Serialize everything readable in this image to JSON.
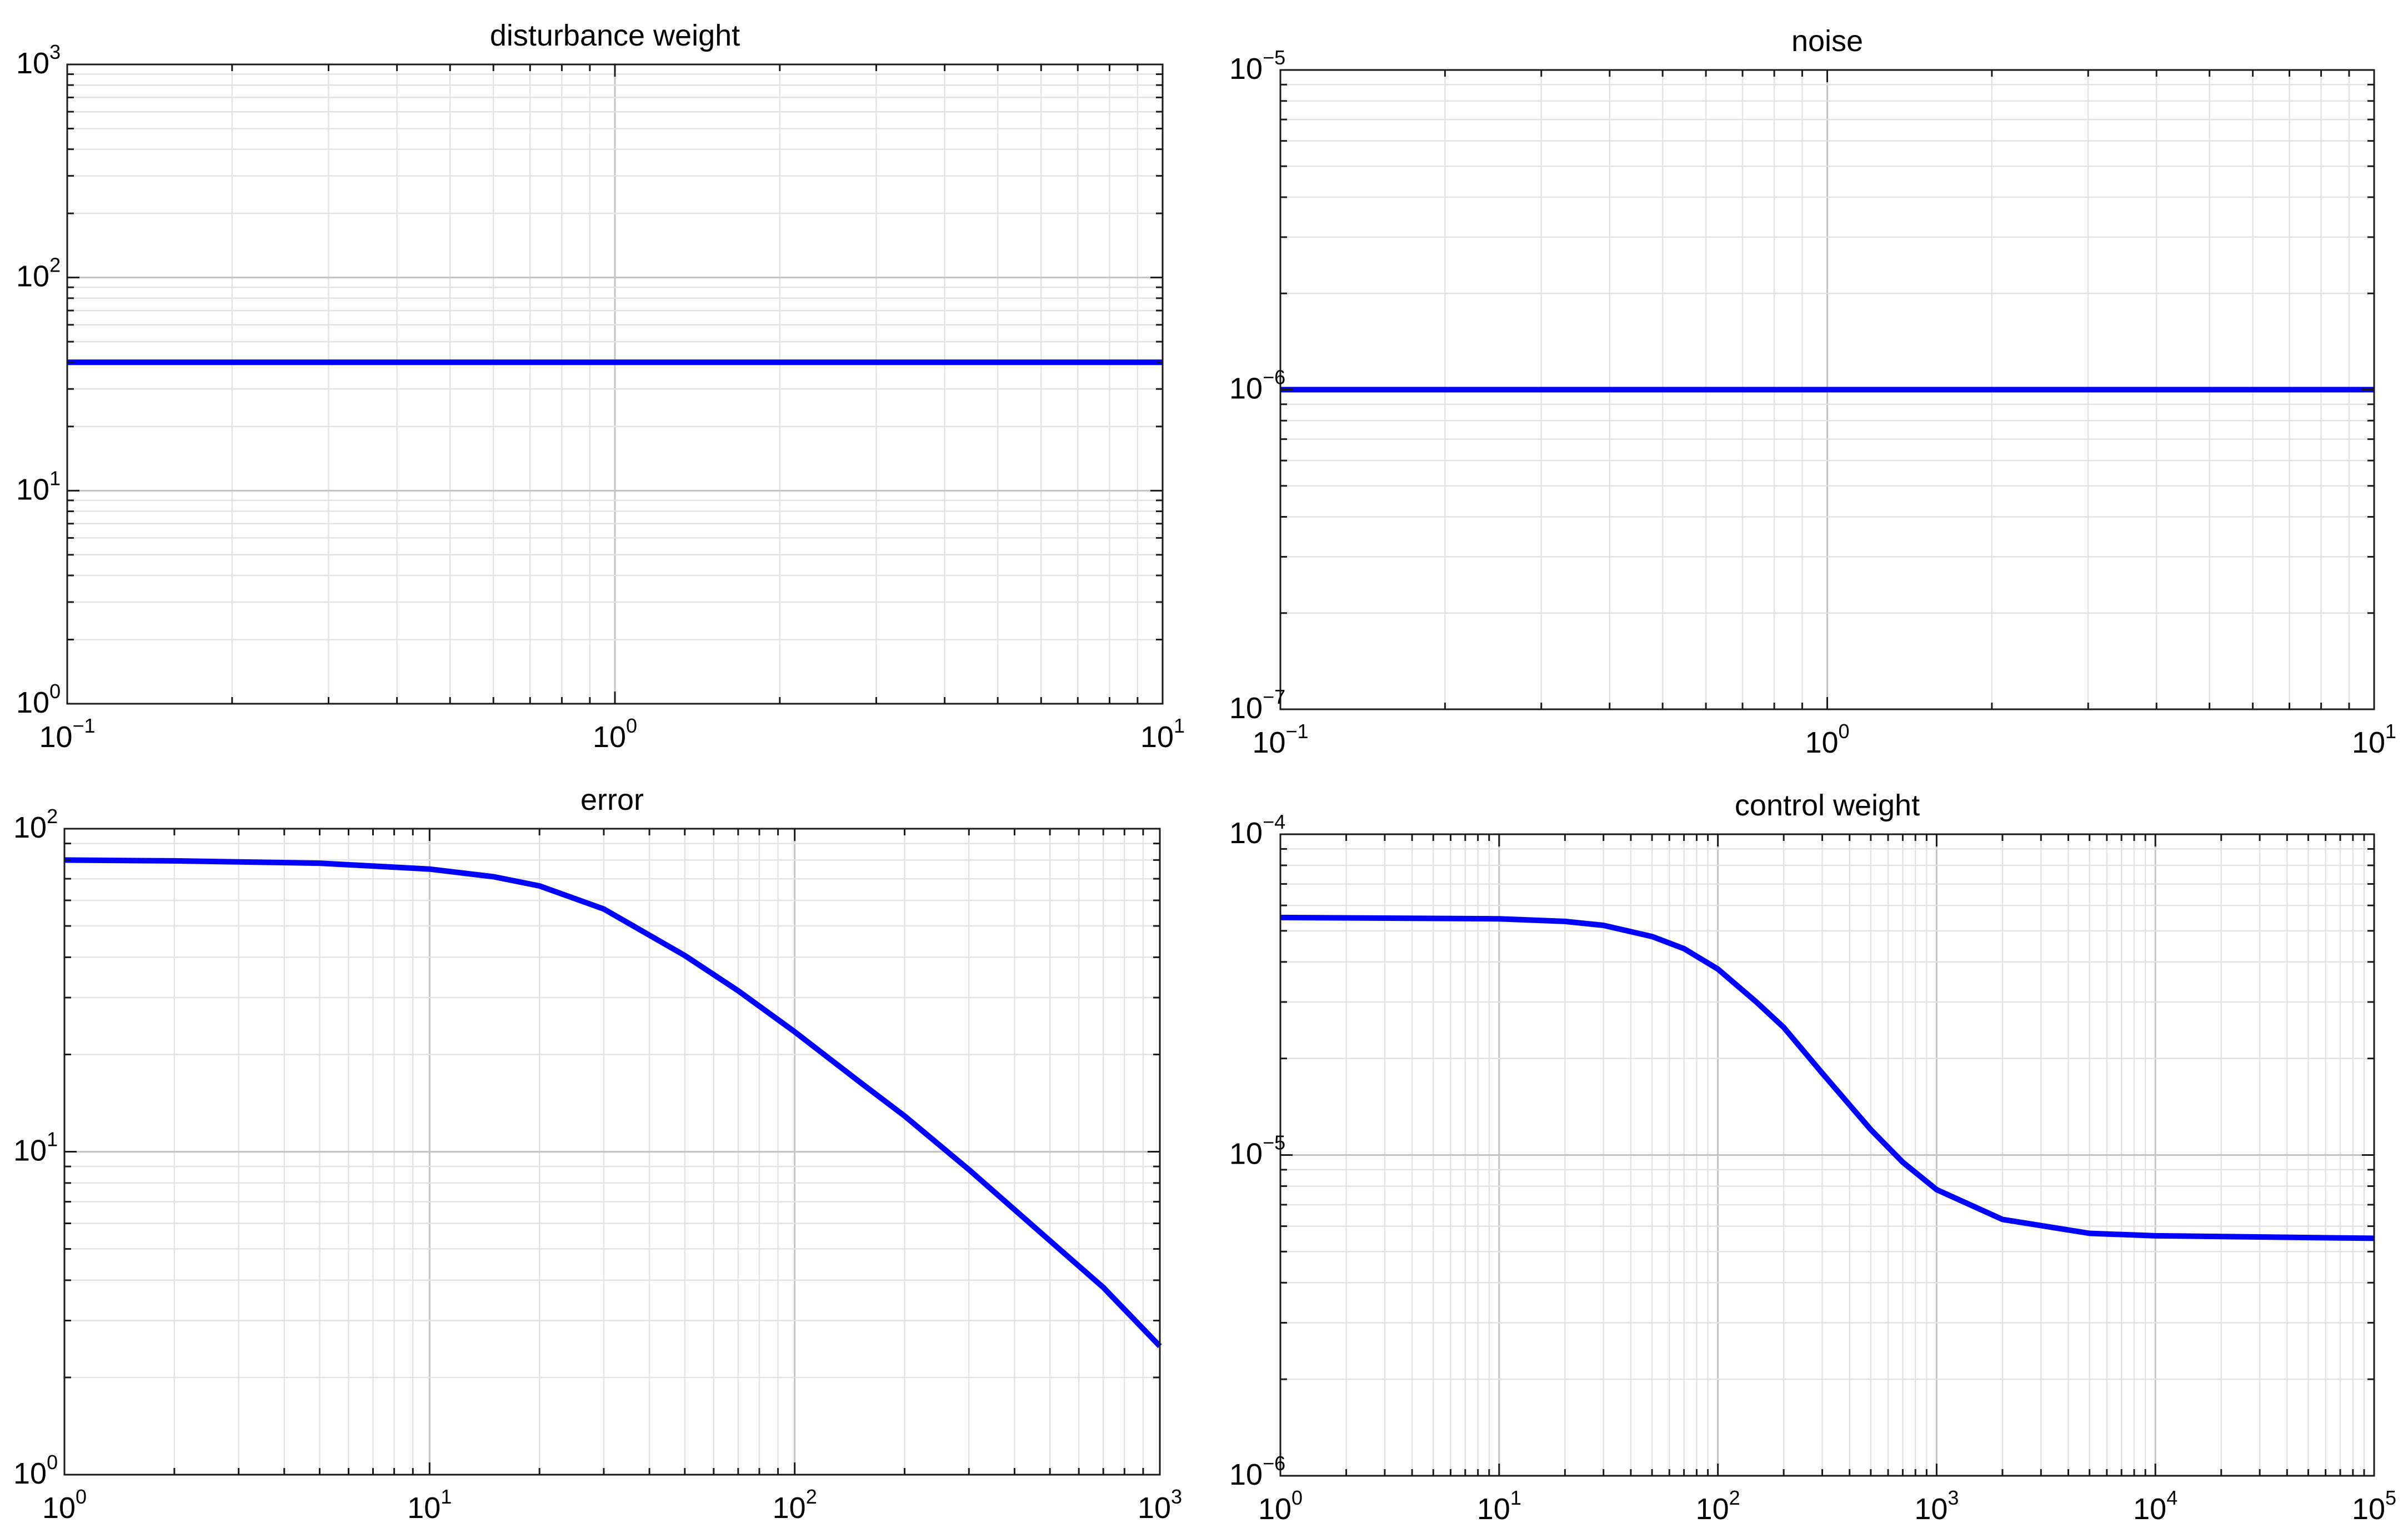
{
  "chart_data": [
    {
      "type": "line",
      "title": "disturbance weight",
      "xscale": "log",
      "yscale": "log",
      "xlim": [
        0.1,
        10
      ],
      "ylim": [
        1,
        1000
      ],
      "grid": true,
      "xticks": [
        {
          "base": "10",
          "exp": "−1"
        },
        {
          "base": "10",
          "exp": "0"
        },
        {
          "base": "10",
          "exp": "1"
        }
      ],
      "yticks": [
        {
          "base": "10",
          "exp": "0"
        },
        {
          "base": "10",
          "exp": "1"
        },
        {
          "base": "10",
          "exp": "2"
        },
        {
          "base": "10",
          "exp": "3"
        }
      ],
      "series": [
        {
          "color": "#0000ff",
          "x": [
            0.1,
            10
          ],
          "y": [
            40,
            40
          ]
        }
      ]
    },
    {
      "type": "line",
      "title": "noise",
      "xscale": "log",
      "yscale": "log",
      "xlim": [
        0.1,
        10
      ],
      "ylim": [
        1e-07,
        1e-05
      ],
      "grid": true,
      "xticks": [
        {
          "base": "10",
          "exp": "−1"
        },
        {
          "base": "10",
          "exp": "0"
        },
        {
          "base": "10",
          "exp": "1"
        }
      ],
      "yticks": [
        {
          "base": "10",
          "exp": "−7"
        },
        {
          "base": "10",
          "exp": "−6"
        },
        {
          "base": "10",
          "exp": "−5"
        }
      ],
      "series": [
        {
          "color": "#0000ff",
          "x": [
            0.1,
            10
          ],
          "y": [
            1e-06,
            1e-06
          ]
        }
      ]
    },
    {
      "type": "line",
      "title": "error",
      "xscale": "log",
      "yscale": "log",
      "xlim": [
        1,
        1000
      ],
      "ylim": [
        1,
        100
      ],
      "grid": true,
      "xticks": [
        {
          "base": "10",
          "exp": "0"
        },
        {
          "base": "10",
          "exp": "1"
        },
        {
          "base": "10",
          "exp": "2"
        },
        {
          "base": "10",
          "exp": "3"
        }
      ],
      "yticks": [
        {
          "base": "10",
          "exp": "0"
        },
        {
          "base": "10",
          "exp": "1"
        },
        {
          "base": "10",
          "exp": "2"
        }
      ],
      "series": [
        {
          "color": "#0000ff",
          "x": [
            1,
            2,
            5,
            10,
            15,
            20,
            30,
            50,
            70,
            100,
            150,
            200,
            300,
            500,
            700,
            1000
          ],
          "y": [
            80,
            79.5,
            78.2,
            75,
            71,
            66.5,
            56.4,
            40.5,
            31.5,
            23.5,
            16.5,
            12.9,
            8.8,
            5.3,
            3.8,
            2.5
          ]
        }
      ]
    },
    {
      "type": "line",
      "title": "control weight",
      "xscale": "log",
      "yscale": "log",
      "xlim": [
        1,
        100000
      ],
      "ylim": [
        1e-06,
        0.0001
      ],
      "grid": true,
      "xticks": [
        {
          "base": "10",
          "exp": "0"
        },
        {
          "base": "10",
          "exp": "1"
        },
        {
          "base": "10",
          "exp": "2"
        },
        {
          "base": "10",
          "exp": "3"
        },
        {
          "base": "10",
          "exp": "4"
        },
        {
          "base": "10",
          "exp": "5"
        }
      ],
      "yticks": [
        {
          "base": "10",
          "exp": "−6"
        },
        {
          "base": "10",
          "exp": "−5"
        },
        {
          "base": "10",
          "exp": "−4"
        }
      ],
      "series": [
        {
          "color": "#0000ff",
          "x": [
            1,
            10,
            20,
            30,
            50,
            70,
            100,
            150,
            200,
            300,
            500,
            700,
            1000,
            2000,
            5000,
            10000,
            100000
          ],
          "y": [
            5.5e-05,
            5.45e-05,
            5.35e-05,
            5.2e-05,
            4.8e-05,
            4.4e-05,
            3.8e-05,
            3e-05,
            2.5e-05,
            1.8e-05,
            1.2e-05,
            9.5e-06,
            7.8e-06,
            6.3e-06,
            5.7e-06,
            5.6e-06,
            5.5e-06
          ]
        }
      ]
    }
  ]
}
